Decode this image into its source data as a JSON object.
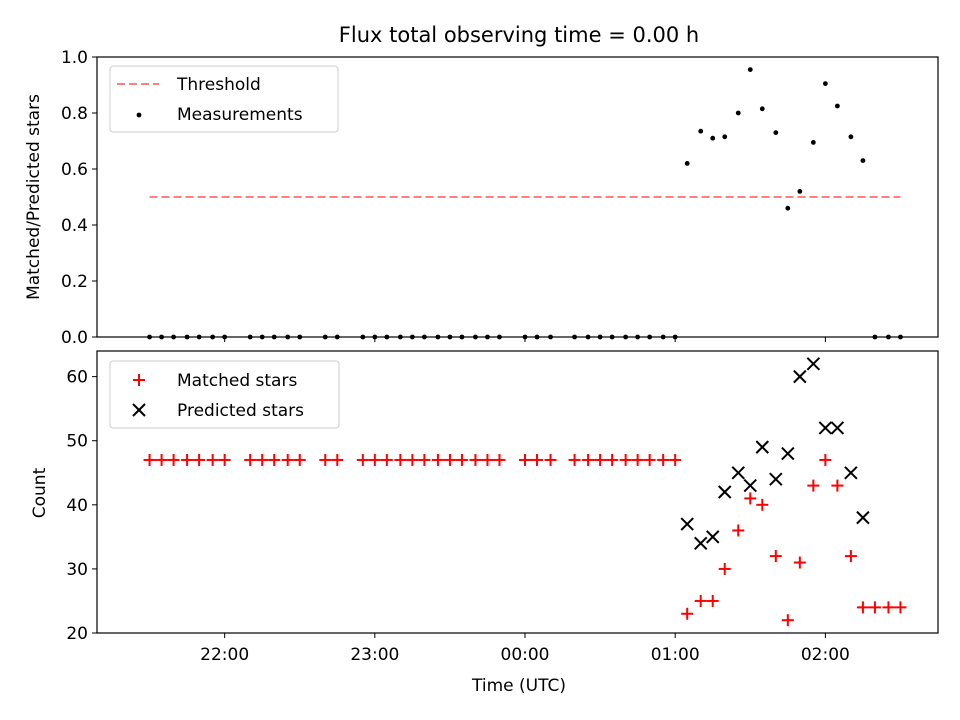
{
  "chart_data": [
    {
      "type": "scatter",
      "title": "Flux total observing time = 0.00 h",
      "xlabel": "",
      "ylabel": "Matched/Predicted stars",
      "ylim": [
        0,
        1.0
      ],
      "yticks": [
        "0.0",
        "0.2",
        "0.4",
        "0.6",
        "0.8",
        "1.0"
      ],
      "xlim_hours": [
        21.15,
        26.75
      ],
      "legend_position": "top-left",
      "series": [
        {
          "name": "Threshold",
          "style": "dashed-line",
          "color": "#ff7f7f",
          "x": [
            21.5,
            26.5
          ],
          "y": [
            0.5,
            0.5
          ]
        },
        {
          "name": "Measurements",
          "style": "dots",
          "color": "#000000",
          "x": [
            21.5,
            21.58,
            21.66,
            21.75,
            21.83,
            21.92,
            22.0,
            22.17,
            22.25,
            22.33,
            22.42,
            22.5,
            22.67,
            22.75,
            22.92,
            23.0,
            23.08,
            23.17,
            23.25,
            23.33,
            23.42,
            23.5,
            23.58,
            23.67,
            23.75,
            23.83,
            24.0,
            24.08,
            24.17,
            24.33,
            24.42,
            24.5,
            24.58,
            24.67,
            24.75,
            24.83,
            24.92,
            25.0,
            25.08,
            25.17,
            25.25,
            25.33,
            25.42,
            25.5,
            25.58,
            25.67,
            25.75,
            25.83,
            25.92,
            26.0,
            26.08,
            26.17,
            26.25,
            26.33,
            26.42,
            26.5
          ],
          "y": [
            0,
            0,
            0,
            0,
            0,
            0,
            0,
            0,
            0,
            0,
            0,
            0,
            0,
            0,
            0,
            0,
            0,
            0,
            0,
            0,
            0,
            0,
            0,
            0,
            0,
            0,
            0,
            0,
            0,
            0,
            0,
            0,
            0,
            0,
            0,
            0,
            0,
            0,
            0.62,
            0.735,
            0.71,
            0.715,
            0.8,
            0.955,
            0.815,
            0.73,
            0.46,
            0.52,
            0.695,
            0.905,
            0.825,
            0.715,
            0.63,
            0,
            0,
            0
          ]
        }
      ]
    },
    {
      "type": "scatter",
      "title": "",
      "xlabel": "Time (UTC)",
      "ylabel": "Count",
      "ylim": [
        20,
        64
      ],
      "yticks": [
        "20",
        "30",
        "40",
        "50",
        "60"
      ],
      "xlim_hours": [
        21.15,
        26.75
      ],
      "xticks": [
        "22:00",
        "23:00",
        "00:00",
        "01:00",
        "02:00"
      ],
      "legend_position": "top-left",
      "series": [
        {
          "name": "Matched stars",
          "marker": "plus",
          "color": "#ff0000",
          "x": [
            21.5,
            21.58,
            21.66,
            21.75,
            21.83,
            21.92,
            22.0,
            22.17,
            22.25,
            22.33,
            22.42,
            22.5,
            22.67,
            22.75,
            22.92,
            23.0,
            23.08,
            23.17,
            23.25,
            23.33,
            23.42,
            23.5,
            23.58,
            23.67,
            23.75,
            23.83,
            24.0,
            24.08,
            24.17,
            24.33,
            24.42,
            24.5,
            24.58,
            24.67,
            24.75,
            24.83,
            24.92,
            25.0,
            25.08,
            25.17,
            25.25,
            25.33,
            25.42,
            25.5,
            25.58,
            25.67,
            25.75,
            25.83,
            25.92,
            26.0,
            26.08,
            26.17,
            26.25,
            26.33,
            26.42,
            26.5
          ],
          "y": [
            47,
            47,
            47,
            47,
            47,
            47,
            47,
            47,
            47,
            47,
            47,
            47,
            47,
            47,
            47,
            47,
            47,
            47,
            47,
            47,
            47,
            47,
            47,
            47,
            47,
            47,
            47,
            47,
            47,
            47,
            47,
            47,
            47,
            47,
            47,
            47,
            47,
            47,
            23,
            25,
            25,
            30,
            36,
            41,
            40,
            32,
            22,
            31,
            43,
            47,
            43,
            32,
            24,
            24,
            24,
            24
          ]
        },
        {
          "name": "Predicted stars",
          "marker": "x",
          "color": "#000000",
          "x": [
            25.08,
            25.17,
            25.25,
            25.33,
            25.42,
            25.5,
            25.58,
            25.67,
            25.75,
            25.83,
            25.92,
            26.0,
            26.08,
            26.17,
            26.25
          ],
          "y": [
            37,
            34,
            35,
            42,
            45,
            43,
            49,
            44,
            48,
            60,
            62,
            52,
            52,
            45,
            38
          ]
        }
      ]
    }
  ]
}
